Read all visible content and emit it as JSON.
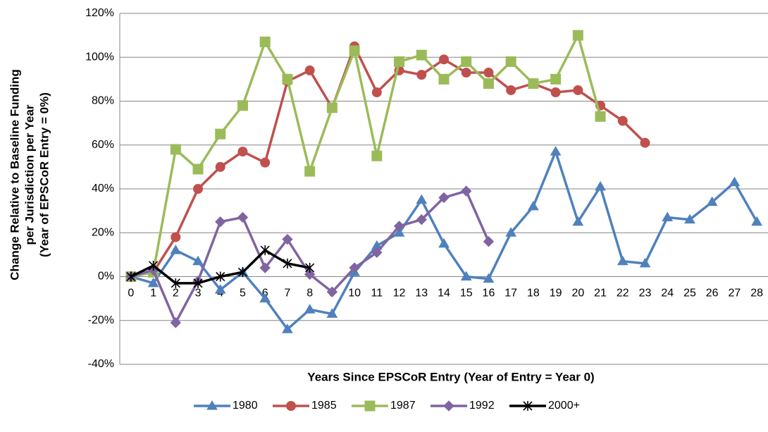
{
  "chart_data": {
    "type": "line",
    "y_label": [
      "Change Relative to Baseline Funding",
      "per Jurisdiction per Year",
      "(Year of EPSCoR Entry = 0%)"
    ],
    "x_label": "Years Since EPSCoR Entry (Year of Entry = Year 0)",
    "categories": [
      "0",
      "1",
      "2",
      "3",
      "4",
      "5",
      "6",
      "7",
      "8",
      "9",
      "10",
      "11",
      "12",
      "13",
      "14",
      "15",
      "16",
      "17",
      "18",
      "19",
      "20",
      "21",
      "22",
      "23",
      "24",
      "25",
      "26",
      "27",
      "28"
    ],
    "ylim": [
      -40,
      120
    ],
    "yticks": [
      {
        "value": -40,
        "label": "-40%"
      },
      {
        "value": -20,
        "label": "-20%"
      },
      {
        "value": 0,
        "label": "0%"
      },
      {
        "value": 20,
        "label": "20%"
      },
      {
        "value": 40,
        "label": "40%"
      },
      {
        "value": 60,
        "label": "60%"
      },
      {
        "value": 80,
        "label": "80%"
      },
      {
        "value": 100,
        "label": "100%"
      },
      {
        "value": 120,
        "label": "120%"
      }
    ],
    "grid": true,
    "legend": "bottom",
    "series": [
      {
        "name": "1980",
        "color": "#4f81bd",
        "marker": "triangle",
        "values": [
          0,
          -3,
          12,
          7,
          -6,
          2,
          -10,
          -24,
          -15,
          -17,
          2,
          14,
          20,
          35,
          15,
          0,
          -1,
          20,
          32,
          57,
          25,
          41,
          7,
          6,
          27,
          26,
          34,
          43,
          25
        ]
      },
      {
        "name": "1985",
        "color": "#c0504d",
        "marker": "circle",
        "values": [
          0,
          2,
          18,
          40,
          50,
          57,
          52,
          89,
          94,
          77,
          105,
          84,
          94,
          92,
          99,
          93,
          93,
          85,
          88,
          84,
          85,
          78,
          71,
          61,
          null,
          null,
          null,
          null,
          null
        ]
      },
      {
        "name": "1987",
        "color": "#9bbb59",
        "marker": "square",
        "values": [
          0,
          2,
          58,
          49,
          65,
          78,
          107,
          90,
          48,
          77,
          103,
          55,
          98,
          101,
          90,
          98,
          88,
          98,
          88,
          90,
          110,
          73,
          null,
          null,
          null,
          null,
          null,
          null,
          null
        ]
      },
      {
        "name": "1992",
        "color": "#8064a2",
        "marker": "diamond",
        "values": [
          0,
          3,
          -21,
          -2,
          25,
          27,
          4,
          17,
          1,
          -7,
          4,
          11,
          23,
          26,
          36,
          39,
          16,
          null,
          null,
          null,
          null,
          null,
          null,
          null,
          null,
          null,
          null,
          null,
          null
        ]
      },
      {
        "name": "2000+",
        "color": "#000000",
        "marker": "star",
        "values": [
          0,
          5,
          -3,
          -3,
          0,
          2,
          12,
          6,
          4,
          null,
          null,
          null,
          null,
          null,
          null,
          null,
          null,
          null,
          null,
          null,
          null,
          null,
          null,
          null,
          null,
          null,
          null,
          null,
          null
        ]
      }
    ]
  }
}
